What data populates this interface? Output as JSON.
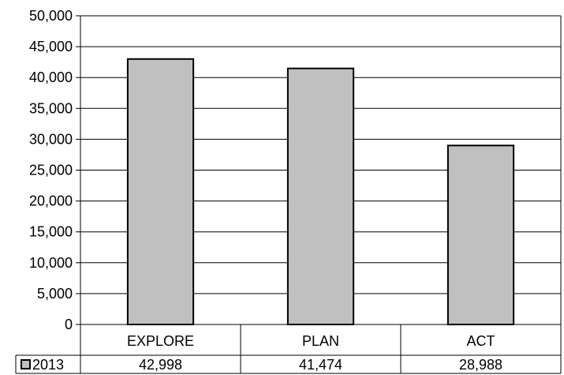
{
  "chart_data": {
    "type": "bar",
    "categories": [
      "EXPLORE",
      "PLAN",
      "ACT"
    ],
    "series": [
      {
        "name": "2013",
        "values": [
          42998,
          41474,
          28988
        ],
        "value_labels": [
          "42,998",
          "41,474",
          "28,988"
        ],
        "color": "#c0c0c0"
      }
    ],
    "ylim": [
      0,
      50000
    ],
    "yticks": [
      0,
      5000,
      10000,
      15000,
      20000,
      25000,
      30000,
      35000,
      40000,
      45000,
      50000
    ],
    "ytick_labels": [
      "0",
      "5,000",
      "10,000",
      "15,000",
      "20,000",
      "25,000",
      "30,000",
      "35,000",
      "40,000",
      "45,000",
      "50,000"
    ],
    "grid": true,
    "legend": "data-table-left",
    "data_table": true,
    "title": "",
    "xlabel": "",
    "ylabel": ""
  },
  "colors": {
    "bar_fill": "#c0c0c0",
    "bar_stroke": "#000000",
    "grid": "#000000",
    "background": "#ffffff"
  }
}
